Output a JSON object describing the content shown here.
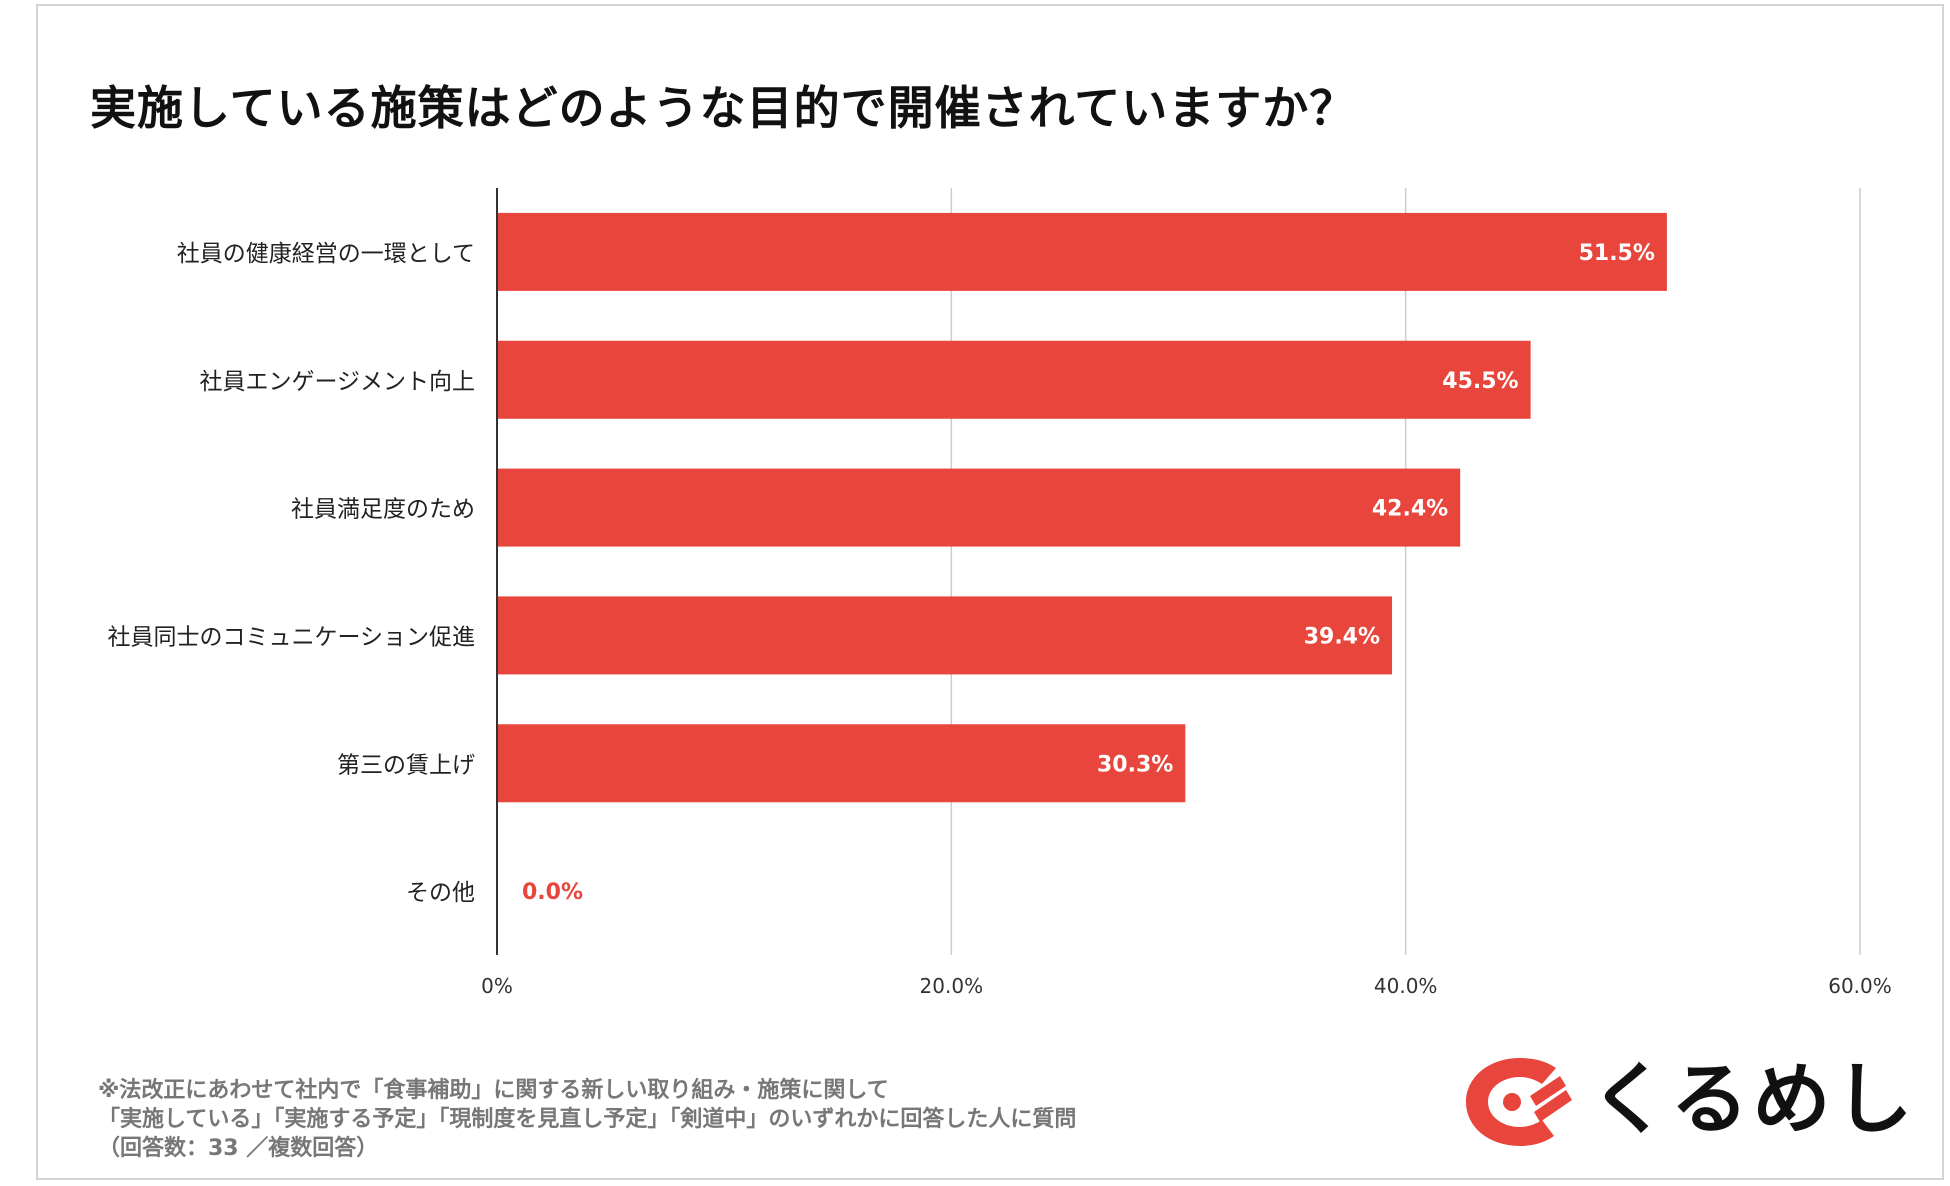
{
  "chart_data": {
    "type": "bar",
    "orientation": "horizontal",
    "title": "実施している施策はどのような目的で開催されていますか？",
    "categories": [
      "社員の健康経営の一環として",
      "社員エンゲージメント向上",
      "社員満足度のため",
      "社員同士のコミュニケーション促進",
      "第三の賃上げ",
      "その他"
    ],
    "values": [
      51.5,
      45.5,
      42.4,
      39.4,
      30.3,
      0.0
    ],
    "value_labels": [
      "51.5%",
      "45.5%",
      "42.4%",
      "39.4%",
      "30.3%",
      "0.0%"
    ],
    "xlim": [
      0,
      60
    ],
    "xticks": [
      0,
      20,
      40,
      60
    ],
    "xtick_labels": [
      "0%",
      "20.0%",
      "40.0%",
      "60.0%"
    ],
    "xlabel": "",
    "ylabel": "",
    "grid": true,
    "bar_color": "#e8453c"
  },
  "footnote": {
    "line1": "※法改正にあわせて社内で「食事補助」に関する新しい取り組み・施策に関して",
    "line2": "「実施している」「実施する予定」「現制度を見直し予定」「剣道中」のいずれかに回答した人に質問",
    "line3": "（回答数：33 ／複数回答）"
  },
  "logo": {
    "text": "くるめし",
    "color": "#e8453c"
  }
}
